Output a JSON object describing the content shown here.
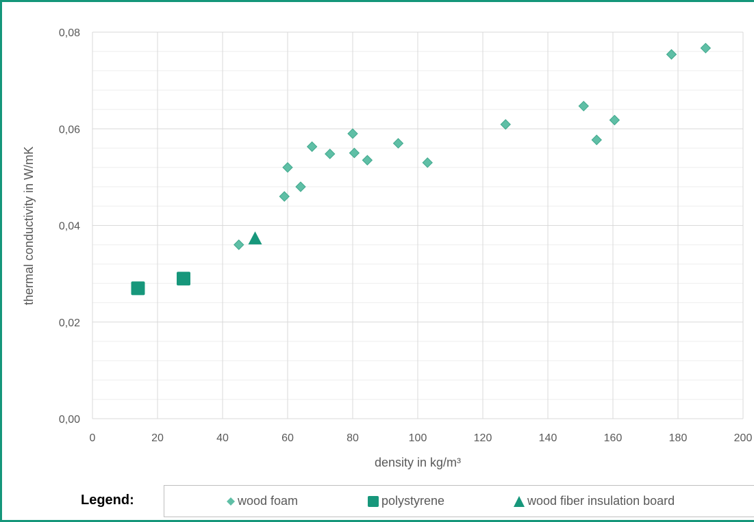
{
  "colors": {
    "frame": "#15967a",
    "wood_foam": "#5fbfa6",
    "wood_foam_edge": "#3fa88c",
    "polystyrene": "#17977b",
    "fiber_board": "#17977b",
    "grid": "#d9d9d9",
    "text": "#595959"
  },
  "legend": {
    "label": "Legend:"
  },
  "chart_data": {
    "type": "scatter",
    "xlabel": "density in kg/m³",
    "ylabel": "thermal conductivity in W/mK",
    "xlim": [
      0,
      200
    ],
    "ylim": [
      0,
      0.08
    ],
    "x_ticks": [
      "0",
      "20",
      "40",
      "60",
      "80",
      "100",
      "120",
      "140",
      "160",
      "180",
      "200"
    ],
    "y_ticks": [
      "0,00",
      "0,02",
      "0,04",
      "0,06",
      "0,08"
    ],
    "grid": true,
    "legend_position": "bottom",
    "series": [
      {
        "name": "wood foam",
        "marker": "diamond",
        "points": [
          [
            45,
            0.036
          ],
          [
            59,
            0.046
          ],
          [
            60,
            0.052
          ],
          [
            64,
            0.048
          ],
          [
            67.5,
            0.0563
          ],
          [
            73,
            0.0548
          ],
          [
            80,
            0.059
          ],
          [
            80.5,
            0.055
          ],
          [
            84.5,
            0.0535
          ],
          [
            94,
            0.057
          ],
          [
            103,
            0.053
          ],
          [
            127,
            0.0609
          ],
          [
            151,
            0.0647
          ],
          [
            155,
            0.0577
          ],
          [
            160.5,
            0.0618
          ],
          [
            178,
            0.0754
          ],
          [
            188.5,
            0.0767
          ]
        ]
      },
      {
        "name": "polystyrene",
        "marker": "square",
        "points": [
          [
            14,
            0.027
          ],
          [
            28,
            0.029
          ]
        ]
      },
      {
        "name": "wood fiber insulation board",
        "marker": "triangle",
        "points": [
          [
            50,
            0.0372
          ]
        ]
      }
    ]
  }
}
